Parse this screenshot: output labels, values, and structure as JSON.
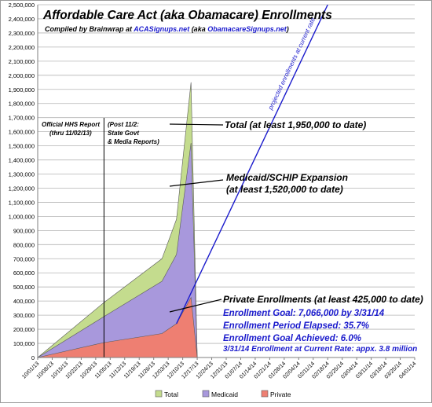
{
  "chart_data": {
    "type": "area",
    "title": "Affordable Care Act (aka Obamacare) Enrollments",
    "subtitle_parts": [
      "Compiled by Brainwrap at ",
      "ACASignups.net",
      "  (aka ",
      "ObamacareSignups.net",
      ")"
    ],
    "x_dates": [
      "10/01/13",
      "10/08/13",
      "10/15/13",
      "10/22/13",
      "10/29/13",
      "11/05/13",
      "11/12/13",
      "11/19/13",
      "11/26/13",
      "12/03/13",
      "12/10/13",
      "12/17/13",
      "12/24/13",
      "12/31/13",
      "01/07/14",
      "01/14/14",
      "01/21/14",
      "01/28/14",
      "02/04/14",
      "02/11/14",
      "02/18/14",
      "02/25/14",
      "03/04/14",
      "03/11/14",
      "03/18/14",
      "03/25/14",
      "04/01/14"
    ],
    "ylim": [
      0,
      2500000
    ],
    "ytick_labels": [
      "0",
      "100,000",
      "200,000",
      "300,000",
      "400,000",
      "500,000",
      "600,000",
      "700,000",
      "800,000",
      "900,000",
      "1,000,000",
      "1,100,000",
      "1,200,000",
      "1,300,000",
      "1,400,000",
      "1,500,000",
      "1,600,000",
      "1,700,000",
      "1,800,000",
      "1,900,000",
      "2,000,000",
      "2,100,000",
      "2,200,000",
      "2,300,000",
      "2,400,000",
      "2,500,000"
    ],
    "series": [
      {
        "name": "Total",
        "color": "#c4dc8e",
        "points": [
          [
            "10/01/13",
            0
          ],
          [
            "11/02/13",
            390000
          ],
          [
            "11/30/13",
            700000
          ],
          [
            "12/07/13",
            980000
          ],
          [
            "12/14/13",
            1950000
          ],
          [
            "12/17/13",
            0
          ]
        ]
      },
      {
        "name": "Medicaid",
        "color": "#a898dc",
        "points": [
          [
            "10/01/13",
            0
          ],
          [
            "11/02/13",
            290000
          ],
          [
            "11/30/13",
            540000
          ],
          [
            "12/07/13",
            730000
          ],
          [
            "12/14/13",
            1520000
          ],
          [
            "12/17/13",
            0
          ]
        ]
      },
      {
        "name": "Private",
        "color": "#ee7f72",
        "points": [
          [
            "10/01/13",
            0
          ],
          [
            "11/02/13",
            106000
          ],
          [
            "11/30/13",
            170000
          ],
          [
            "12/07/13",
            240000
          ],
          [
            "12/14/13",
            425000
          ],
          [
            "12/17/13",
            0
          ]
        ]
      }
    ],
    "projection": {
      "label": "projected enrollments at current rate",
      "color": "#1a1acc",
      "points": [
        [
          "12/07/13",
          240000
        ],
        [
          "02/18/14",
          2500000
        ]
      ]
    },
    "vertical_marker": {
      "date": "11/02/13"
    },
    "annotations": {
      "hhs_report": [
        "Official HHS Report",
        "(thru 11/02/13)"
      ],
      "post_report": [
        "(Post 11/2:",
        "State Govt",
        "& Media Reports)"
      ],
      "total": "Total (at least 1,950,000 to date)",
      "medicaid": [
        "Medicaid/SCHIP Expansion",
        "(at least 1,520,000 to date)"
      ],
      "private": "Private Enrollments (at least 425,000 to date)",
      "goal_lines": [
        "Enrollment Goal: 7,066,000 by 3/31/14",
        "Enrollment Period Elapsed: 35.7%",
        "Enrollment Goal Achieved: 6.0%"
      ],
      "current_rate": "3/31/14 Enrollment at Current Rate: appx. 3.8 million"
    },
    "legend": [
      "Total",
      "Medicaid",
      "Private"
    ],
    "legend_position": "bottom",
    "grid": true
  },
  "colors": {
    "blue_text": "#1a1acc",
    "grid": "#b4b4b4",
    "axis": "#7f7f7f"
  }
}
